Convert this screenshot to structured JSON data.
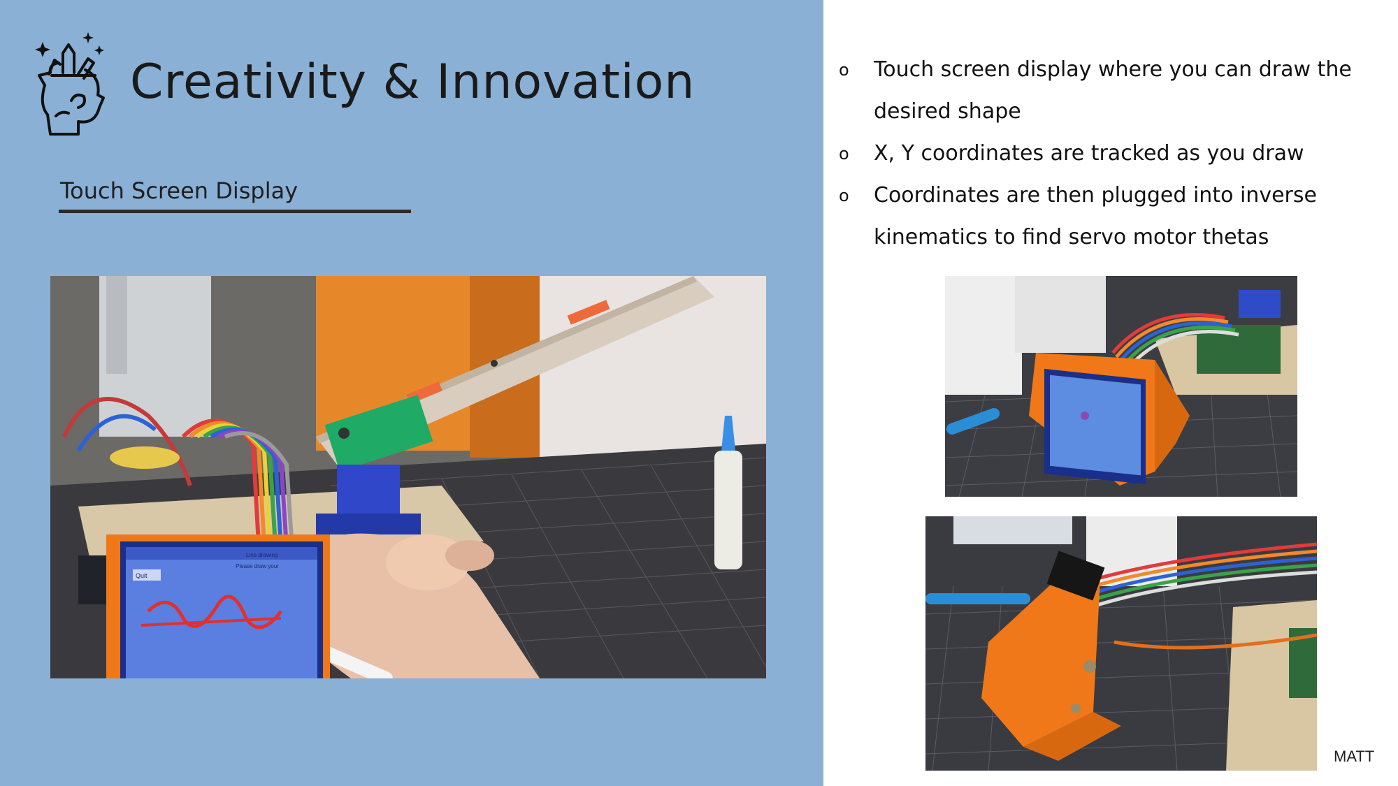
{
  "slide": {
    "title": "Creativity & Innovation",
    "subheading": "Touch Screen Display",
    "author": "MATT"
  },
  "bullets": [
    {
      "marker": "o",
      "text": "Touch screen display where you can draw the desired shape"
    },
    {
      "marker": "o",
      "text": "X, Y coordinates are tracked as you draw"
    },
    {
      "marker": "o",
      "text": "Coordinates are then plugged into inverse kinematics to find servo motor thetas"
    }
  ],
  "photo_main": {
    "screen_labels": [
      "Quit",
      "Line drawing",
      "Please draw your"
    ]
  },
  "colors": {
    "panel_bg": "#8ab0d5",
    "title_text": "#1a1a1a",
    "underline": "#2a2a2a",
    "orange_case": "#f07818"
  },
  "icons": [
    "brain-head-icon"
  ]
}
